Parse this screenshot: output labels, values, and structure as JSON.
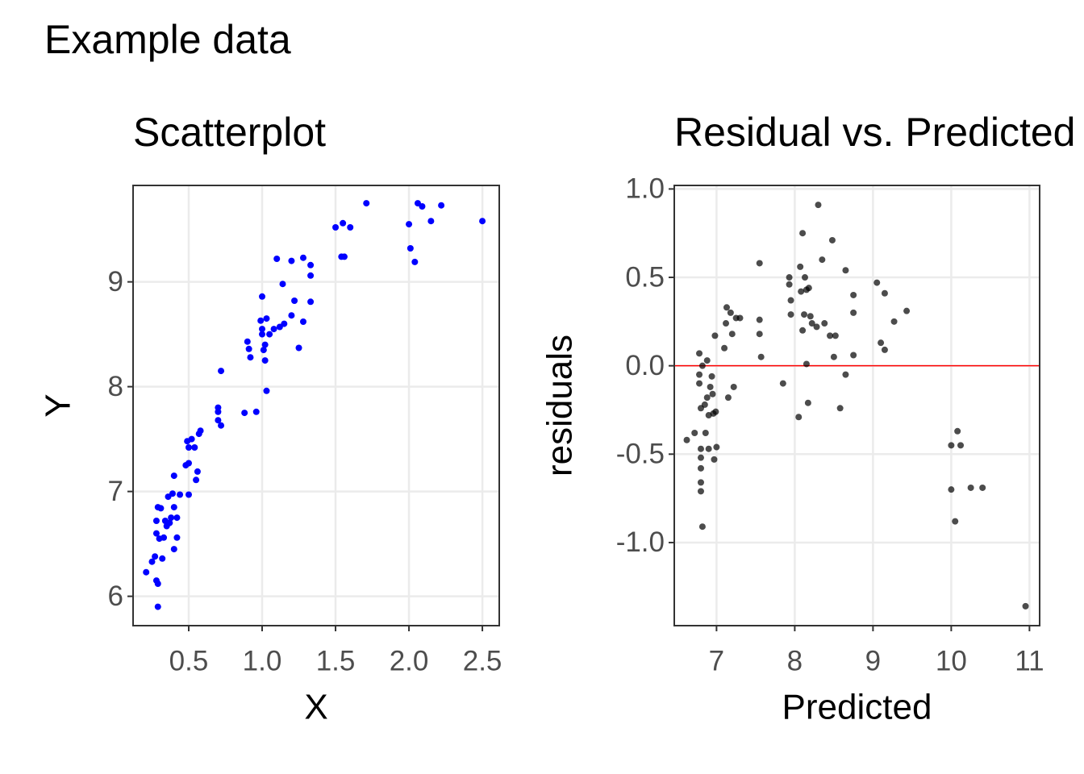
{
  "title": "Example data",
  "chart_data": [
    {
      "type": "scatter",
      "title": "Scatterplot",
      "xlabel": "X",
      "ylabel": "Y",
      "color": "#0000ff",
      "alpha": 1,
      "grid": true,
      "xlim": [
        0.121,
        2.615
      ],
      "ylim": [
        5.72,
        9.92
      ],
      "xticks": [
        0.5,
        {
          "value": 1,
          "label": "1.0"
        },
        1.5,
        {
          "value": 2,
          "label": "2.0"
        },
        2.5
      ],
      "yticks": [
        6,
        7,
        8,
        9
      ],
      "x": [
        0.21,
        0.25,
        0.27,
        0.28,
        0.29,
        0.29,
        0.28,
        0.28,
        0.29,
        0.31,
        0.3,
        0.32,
        0.33,
        0.34,
        0.35,
        0.36,
        0.37,
        0.38,
        0.39,
        0.4,
        0.4,
        0.4,
        0.42,
        0.42,
        0.44,
        0.48,
        0.49,
        0.5,
        0.5,
        0.5,
        0.52,
        0.54,
        0.55,
        0.56,
        0.57,
        0.58,
        0.7,
        0.7,
        0.7,
        0.72,
        0.72,
        0.88,
        0.9,
        0.91,
        0.92,
        0.96,
        0.99,
        1.0,
        1.0,
        1.0,
        1.01,
        1.02,
        1.02,
        1.03,
        1.03,
        1.05,
        1.08,
        1.1,
        1.12,
        1.14,
        1.15,
        1.2,
        1.2,
        1.22,
        1.25,
        1.28,
        1.28,
        1.33,
        1.33,
        1.33,
        1.5,
        1.54,
        1.55,
        1.56,
        1.6,
        1.71,
        2.0,
        2.01,
        2.04,
        2.06,
        2.09,
        2.15,
        2.22,
        2.5
      ],
      "values": [
        6.23,
        6.33,
        6.38,
        6.15,
        5.9,
        6.12,
        6.6,
        6.72,
        6.85,
        6.84,
        6.55,
        6.36,
        6.56,
        6.72,
        6.67,
        6.95,
        6.7,
        6.75,
        6.98,
        6.85,
        7.15,
        6.45,
        6.75,
        6.56,
        6.97,
        7.25,
        7.48,
        7.42,
        6.97,
        7.27,
        7.5,
        7.42,
        7.11,
        7.19,
        7.55,
        7.58,
        7.8,
        7.76,
        7.68,
        8.15,
        7.63,
        7.75,
        8.43,
        8.36,
        8.28,
        7.76,
        8.63,
        8.86,
        8.5,
        8.55,
        8.35,
        8.4,
        8.25,
        8.65,
        7.96,
        8.5,
        8.55,
        9.22,
        8.57,
        8.98,
        8.6,
        9.2,
        8.68,
        8.82,
        8.37,
        8.62,
        9.23,
        9.16,
        9.06,
        8.81,
        9.52,
        9.24,
        9.56,
        9.24,
        9.52,
        9.75,
        9.55,
        9.32,
        9.19,
        9.75,
        9.72,
        9.58,
        9.73,
        9.58
      ]
    },
    {
      "type": "scatter",
      "title": "Residual vs. Predicted",
      "xlabel": "Predicted",
      "ylabel": "residuals",
      "color": "#000000",
      "alpha": 0.7,
      "grid": true,
      "hline": {
        "value": 0,
        "color": "#ff0000"
      },
      "xlim": [
        6.46,
        11.13
      ],
      "ylim": [
        -1.47,
        1.02
      ],
      "xticks": [
        7,
        8,
        9,
        10,
        11
      ],
      "yticks": [
        {
          "value": 1,
          "label": "1.0"
        },
        0.5,
        {
          "value": 0,
          "label": "0.0"
        },
        -0.5,
        {
          "value": -1,
          "label": "-1.0"
        }
      ],
      "x": [
        6.62,
        6.72,
        6.78,
        6.78,
        6.78,
        6.8,
        6.8,
        6.8,
        6.8,
        6.8,
        6.8,
        6.82,
        6.82,
        6.85,
        6.86,
        6.88,
        6.88,
        6.9,
        6.9,
        6.92,
        6.94,
        6.95,
        6.96,
        6.97,
        6.98,
        6.99,
        7.0,
        7.1,
        7.12,
        7.13,
        7.15,
        7.18,
        7.2,
        7.22,
        7.25,
        7.3,
        7.55,
        7.55,
        7.55,
        7.57,
        7.85,
        7.93,
        7.93,
        7.95,
        7.95,
        8.05,
        8.07,
        8.08,
        8.1,
        8.1,
        8.12,
        8.13,
        8.15,
        8.15,
        8.17,
        8.18,
        8.2,
        8.22,
        8.28,
        8.3,
        8.35,
        8.38,
        8.45,
        8.48,
        8.5,
        8.52,
        8.58,
        8.65,
        8.65,
        8.75,
        8.75,
        8.75,
        9.05,
        9.1,
        9.15,
        9.15,
        9.27,
        9.43,
        10.0,
        10.0,
        10.05,
        10.08,
        10.12,
        10.25,
        10.4,
        10.95
      ],
      "values": [
        -0.42,
        -0.38,
        0.07,
        -0.05,
        -0.1,
        -0.24,
        -0.47,
        -0.52,
        -0.58,
        -0.66,
        -0.71,
        -0.91,
        0.0,
        -0.22,
        -0.38,
        0.03,
        -0.18,
        -0.28,
        -0.47,
        -0.12,
        -0.06,
        -0.16,
        -0.27,
        -0.53,
        0.17,
        -0.26,
        -0.46,
        0.1,
        0.24,
        0.33,
        -0.18,
        0.3,
        0.18,
        -0.12,
        0.27,
        0.27,
        0.58,
        0.26,
        0.18,
        0.05,
        -0.1,
        0.5,
        0.46,
        0.37,
        0.29,
        -0.29,
        0.56,
        0.42,
        0.75,
        0.2,
        0.29,
        0.5,
        0.43,
        0.01,
        -0.21,
        0.44,
        0.28,
        0.24,
        0.22,
        0.91,
        0.6,
        0.24,
        0.17,
        0.71,
        0.05,
        0.17,
        -0.24,
        0.54,
        -0.05,
        0.4,
        0.3,
        0.06,
        0.47,
        0.13,
        0.41,
        0.09,
        0.25,
        0.31,
        -0.45,
        -0.7,
        -0.88,
        -0.37,
        -0.45,
        -0.69,
        -0.69,
        -1.36
      ]
    }
  ]
}
